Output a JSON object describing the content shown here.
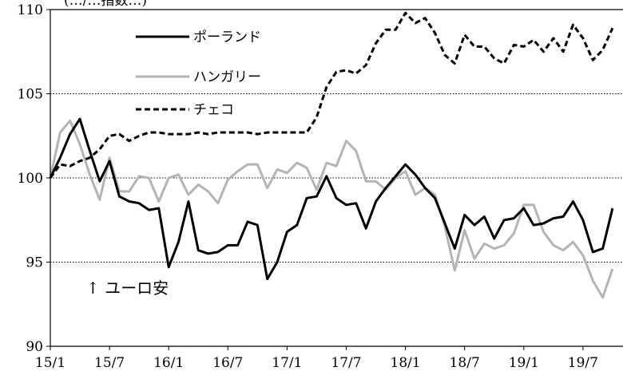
{
  "chart_data": {
    "type": "line",
    "title": "",
    "partial_top_text": "(…/…指数…)",
    "xlabel": "",
    "ylabel": "",
    "x_tick_labels": [
      "15/1",
      "15/7",
      "16/1",
      "16/7",
      "17/1",
      "17/7",
      "18/1",
      "18/7",
      "19/1",
      "19/7"
    ],
    "y_tick_labels": [
      "90",
      "95",
      "100",
      "105",
      "110"
    ],
    "ylim": [
      90,
      110
    ],
    "grid": "horizontal dotted at 95, 100, 105",
    "legend_position": "top-left",
    "annotation": "↑ ユーロ安",
    "months": [
      "15/1",
      "15/2",
      "15/3",
      "15/4",
      "15/5",
      "15/6",
      "15/7",
      "15/8",
      "15/9",
      "15/10",
      "15/11",
      "15/12",
      "16/1",
      "16/2",
      "16/3",
      "16/4",
      "16/5",
      "16/6",
      "16/7",
      "16/8",
      "16/9",
      "16/10",
      "16/11",
      "16/12",
      "17/1",
      "17/2",
      "17/3",
      "17/4",
      "17/5",
      "17/6",
      "17/7",
      "17/8",
      "17/9",
      "17/10",
      "17/11",
      "17/12",
      "18/1",
      "18/2",
      "18/3",
      "18/4",
      "18/5",
      "18/6",
      "18/7",
      "18/8",
      "18/9",
      "18/10",
      "18/11",
      "18/12",
      "19/1",
      "19/2",
      "19/3",
      "19/4",
      "19/5",
      "19/6",
      "19/7",
      "19/8",
      "19/9",
      "19/10"
    ],
    "series": [
      {
        "name": "ポーランド",
        "color": "#000000",
        "style": "solid",
        "values": [
          100.0,
          101.2,
          102.6,
          103.5,
          101.6,
          99.8,
          101.0,
          98.9,
          98.6,
          98.5,
          98.1,
          98.2,
          94.7,
          96.2,
          98.6,
          95.7,
          95.5,
          95.6,
          96.0,
          96.0,
          97.4,
          97.2,
          94.0,
          95.0,
          96.8,
          97.2,
          98.8,
          98.9,
          100.1,
          98.8,
          98.4,
          98.5,
          97.0,
          98.6,
          99.4,
          100.1,
          100.8,
          100.2,
          99.4,
          98.8,
          97.3,
          95.8,
          97.8,
          97.2,
          97.7,
          96.4,
          97.5,
          97.6,
          98.2,
          97.2,
          97.3,
          97.6,
          97.7,
          98.6,
          97.5,
          95.6,
          95.8,
          98.2
        ]
      },
      {
        "name": "ハンガリー",
        "color": "#b4b4b4",
        "style": "solid",
        "values": [
          100.0,
          102.7,
          103.4,
          102.0,
          100.2,
          98.7,
          101.2,
          99.2,
          99.2,
          100.1,
          100.0,
          98.6,
          100.0,
          100.2,
          99.0,
          99.6,
          99.2,
          98.5,
          99.9,
          100.4,
          100.8,
          100.8,
          99.4,
          100.5,
          100.3,
          100.9,
          100.6,
          99.3,
          100.9,
          100.7,
          102.2,
          101.6,
          99.8,
          99.8,
          99.3,
          100.0,
          100.4,
          99.0,
          99.4,
          99.0,
          97.1,
          94.5,
          96.9,
          95.2,
          96.1,
          95.8,
          96.0,
          96.7,
          98.4,
          98.4,
          96.8,
          96.0,
          95.7,
          96.2,
          95.4,
          93.9,
          92.9,
          94.6
        ]
      },
      {
        "name": "チェコ",
        "color": "#000000",
        "style": "dashed",
        "values": [
          100.0,
          100.8,
          100.7,
          101.0,
          101.2,
          101.7,
          102.5,
          102.6,
          102.2,
          102.5,
          102.7,
          102.7,
          102.6,
          102.6,
          102.6,
          102.7,
          102.6,
          102.7,
          102.7,
          102.7,
          102.7,
          102.6,
          102.7,
          102.7,
          102.7,
          102.7,
          102.7,
          103.6,
          105.4,
          106.3,
          106.4,
          106.2,
          106.7,
          108.0,
          108.8,
          108.8,
          109.8,
          109.2,
          109.5,
          108.6,
          107.3,
          106.8,
          108.5,
          107.8,
          107.8,
          107.1,
          106.8,
          107.9,
          107.8,
          108.2,
          107.5,
          108.3,
          107.5,
          109.1,
          108.3,
          107.0,
          107.6,
          108.9
        ]
      }
    ]
  }
}
